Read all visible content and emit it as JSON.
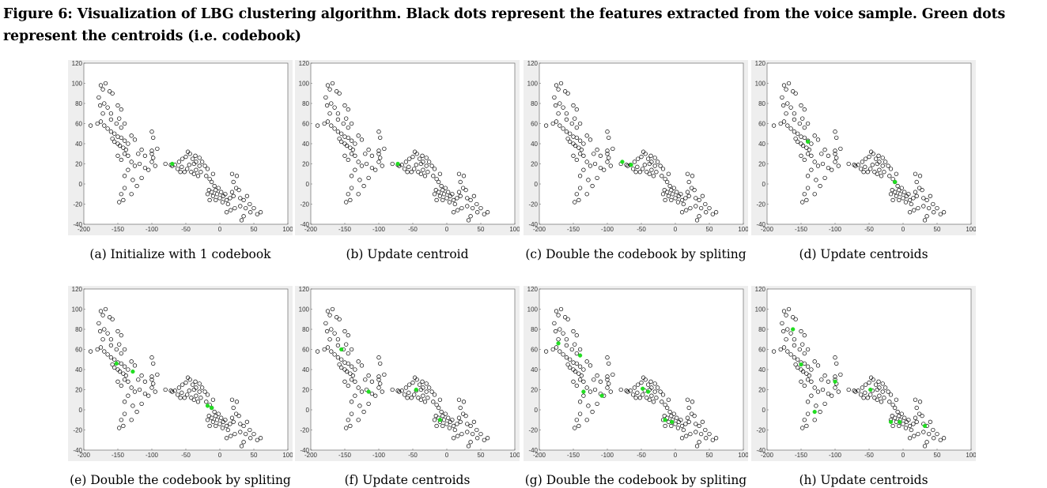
{
  "figure": {
    "title": "Figure 6: Visualization of LBG clustering algorithm. Black dots represent the features extracted from the voice sample. Green dots represent the centroids (i.e. codebook)"
  },
  "colors": {
    "features": "#000000",
    "centroid": "#22dd22",
    "axes_frame": "#d9d9d9"
  },
  "features": [
    [
      -175,
      98
    ],
    [
      -172,
      94
    ],
    [
      -168,
      100
    ],
    [
      -162,
      92
    ],
    [
      -158,
      90
    ],
    [
      -178,
      86
    ],
    [
      -176,
      78
    ],
    [
      -170,
      80
    ],
    [
      -165,
      76
    ],
    [
      -150,
      78
    ],
    [
      -145,
      74
    ],
    [
      -172,
      70
    ],
    [
      -160,
      70
    ],
    [
      -175,
      62
    ],
    [
      -170,
      58
    ],
    [
      -165,
      55
    ],
    [
      -160,
      52
    ],
    [
      -180,
      60
    ],
    [
      -190,
      58
    ],
    [
      -160,
      64
    ],
    [
      -148,
      65
    ],
    [
      -152,
      60
    ],
    [
      -145,
      56
    ],
    [
      -140,
      60
    ],
    [
      -155,
      50
    ],
    [
      -150,
      47
    ],
    [
      -145,
      46
    ],
    [
      -140,
      43
    ],
    [
      -150,
      40
    ],
    [
      -155,
      42
    ],
    [
      -158,
      45
    ],
    [
      -147,
      38
    ],
    [
      -142,
      36
    ],
    [
      -138,
      34
    ],
    [
      -135,
      40
    ],
    [
      -130,
      48
    ],
    [
      -125,
      44
    ],
    [
      -150,
      28
    ],
    [
      -145,
      24
    ],
    [
      -140,
      30
    ],
    [
      -135,
      28
    ],
    [
      -130,
      22
    ],
    [
      -120,
      30
    ],
    [
      -115,
      34
    ],
    [
      -110,
      28
    ],
    [
      -100,
      30
    ],
    [
      -125,
      18
    ],
    [
      -118,
      20
    ],
    [
      -110,
      16
    ],
    [
      -105,
      14
    ],
    [
      -100,
      22
    ],
    [
      -140,
      8
    ],
    [
      -135,
      14
    ],
    [
      -128,
      4
    ],
    [
      -122,
      -2
    ],
    [
      -115,
      6
    ],
    [
      -130,
      -10
    ],
    [
      -140,
      -4
    ],
    [
      -145,
      -10
    ],
    [
      -148,
      -18
    ],
    [
      -142,
      -16
    ],
    [
      -100,
      52
    ],
    [
      -98,
      46
    ],
    [
      -100,
      33
    ],
    [
      -92,
      35
    ],
    [
      -98,
      26
    ],
    [
      -95,
      18
    ],
    [
      -80,
      20
    ],
    [
      -72,
      19
    ],
    [
      -70,
      18
    ],
    [
      -66,
      19
    ],
    [
      -62,
      15
    ],
    [
      -56,
      17
    ],
    [
      -60,
      22
    ],
    [
      -55,
      25
    ],
    [
      -50,
      27
    ],
    [
      -47,
      32
    ],
    [
      -44,
      30
    ],
    [
      -40,
      25
    ],
    [
      -38,
      20
    ],
    [
      -35,
      22
    ],
    [
      -45,
      19
    ],
    [
      -48,
      15
    ],
    [
      -42,
      12
    ],
    [
      -38,
      10
    ],
    [
      -35,
      14
    ],
    [
      -30,
      18
    ],
    [
      -28,
      12
    ],
    [
      -32,
      8
    ],
    [
      -26,
      22
    ],
    [
      -22,
      18
    ],
    [
      -18,
      15
    ],
    [
      -20,
      8
    ],
    [
      -15,
      5
    ],
    [
      -10,
      10
    ],
    [
      -12,
      2
    ],
    [
      -36,
      28
    ],
    [
      -30,
      26
    ],
    [
      -52,
      12
    ],
    [
      -58,
      12
    ],
    [
      -8,
      -2
    ],
    [
      -6,
      -6
    ],
    [
      -4,
      -10
    ],
    [
      -10,
      -12
    ],
    [
      -12,
      -8
    ],
    [
      -2,
      -4
    ],
    [
      2,
      -8
    ],
    [
      5,
      -12
    ],
    [
      8,
      -10
    ],
    [
      0,
      -14
    ],
    [
      -6,
      -16
    ],
    [
      4,
      -18
    ],
    [
      10,
      -16
    ],
    [
      15,
      -14
    ],
    [
      12,
      -20
    ],
    [
      18,
      -8
    ],
    [
      20,
      -12
    ],
    [
      24,
      -4
    ],
    [
      20,
      2
    ],
    [
      25,
      8
    ],
    [
      18,
      10
    ],
    [
      28,
      -6
    ],
    [
      30,
      -14
    ],
    [
      35,
      -16
    ],
    [
      40,
      -12
    ],
    [
      44,
      -20
    ],
    [
      38,
      -24
    ],
    [
      30,
      -22
    ],
    [
      22,
      -24
    ],
    [
      16,
      -26
    ],
    [
      10,
      -28
    ],
    [
      50,
      -24
    ],
    [
      55,
      -30
    ],
    [
      45,
      -28
    ],
    [
      60,
      -28
    ],
    [
      35,
      -32
    ],
    [
      32,
      -36
    ],
    [
      -15,
      -16
    ],
    [
      -18,
      -10
    ],
    [
      -16,
      -6
    ]
  ],
  "panels": [
    {
      "label": "(a) Initialize with 1 codebook",
      "centroids": [
        [
          -70,
          20
        ]
      ]
    },
    {
      "label": "(b) Update centroid",
      "centroids": [
        [
          -72,
          20
        ]
      ]
    },
    {
      "label": "(c) Double the codebook by spliting",
      "centroids": [
        [
          -78,
          22
        ],
        [
          -65,
          19
        ]
      ]
    },
    {
      "label": "(d) Update centroids",
      "centroids": [
        [
          -140,
          42
        ],
        [
          -12,
          2
        ]
      ]
    },
    {
      "label": "(e) Double the codebook by spliting",
      "centroids": [
        [
          -152,
          46
        ],
        [
          -128,
          38
        ],
        [
          -18,
          4
        ],
        [
          -12,
          2
        ]
      ]
    },
    {
      "label": "(f) Update centroids",
      "centroids": [
        [
          -155,
          60
        ],
        [
          -115,
          18
        ],
        [
          -45,
          20
        ],
        [
          -10,
          -10
        ]
      ]
    },
    {
      "label": "(g) Double the codebook by spliting",
      "centroids": [
        [
          -172,
          66
        ],
        [
          -140,
          54
        ],
        [
          -135,
          18
        ],
        [
          -108,
          14
        ],
        [
          -48,
          21
        ],
        [
          -40,
          18
        ],
        [
          -15,
          -10
        ],
        [
          -5,
          -12
        ]
      ]
    },
    {
      "label": "(h) Update centroids",
      "centroids": [
        [
          -162,
          80
        ],
        [
          -150,
          45
        ],
        [
          -130,
          -2
        ],
        [
          -100,
          28
        ],
        [
          -48,
          20
        ],
        [
          -18,
          -12
        ],
        [
          -5,
          -12
        ],
        [
          32,
          -16
        ]
      ]
    }
  ],
  "axes": {
    "xlim": [
      -200,
      100
    ],
    "ylim": [
      -40,
      120
    ],
    "xticks": [
      "-200",
      "-150",
      "-100",
      "-50",
      "0",
      "50",
      "100"
    ],
    "yticks": [
      "120",
      "100",
      "80",
      "60",
      "40",
      "20",
      "0",
      "-20",
      "-40"
    ]
  }
}
